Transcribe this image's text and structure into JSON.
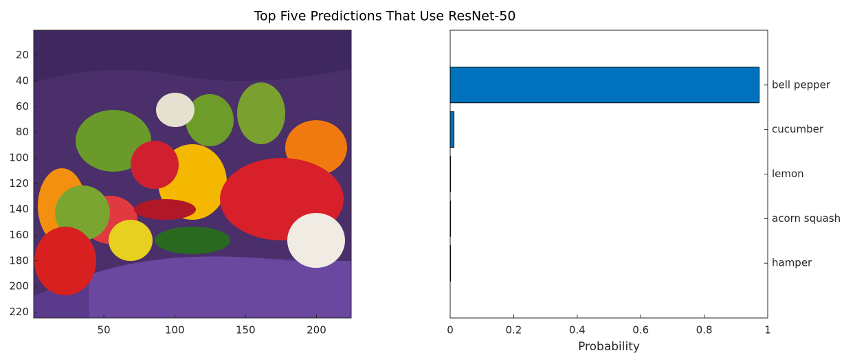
{
  "title": "Top Five Predictions That Use ResNet-50",
  "chart_data": [
    {
      "type": "image",
      "xlim": [
        0.5,
        224.5
      ],
      "ylim": [
        0.5,
        224.5
      ],
      "y_reversed": true,
      "xticks": [
        50,
        100,
        150,
        200
      ],
      "yticks": [
        20,
        40,
        60,
        80,
        100,
        120,
        140,
        160,
        180,
        200,
        220
      ]
    },
    {
      "type": "barh",
      "xlabel": "Probability",
      "color": "#0072bd",
      "edge_color": "#000000",
      "categories": [
        "bell pepper",
        "cucumber",
        "lemon",
        "acorn squash",
        "hamper"
      ],
      "values": [
        0.973,
        0.012,
        0.001,
        0.001,
        0.001
      ],
      "xlim": [
        0,
        1
      ],
      "xticks": [
        0,
        0.2,
        0.4,
        0.6,
        0.8,
        1
      ],
      "ytick_side": "right"
    }
  ]
}
